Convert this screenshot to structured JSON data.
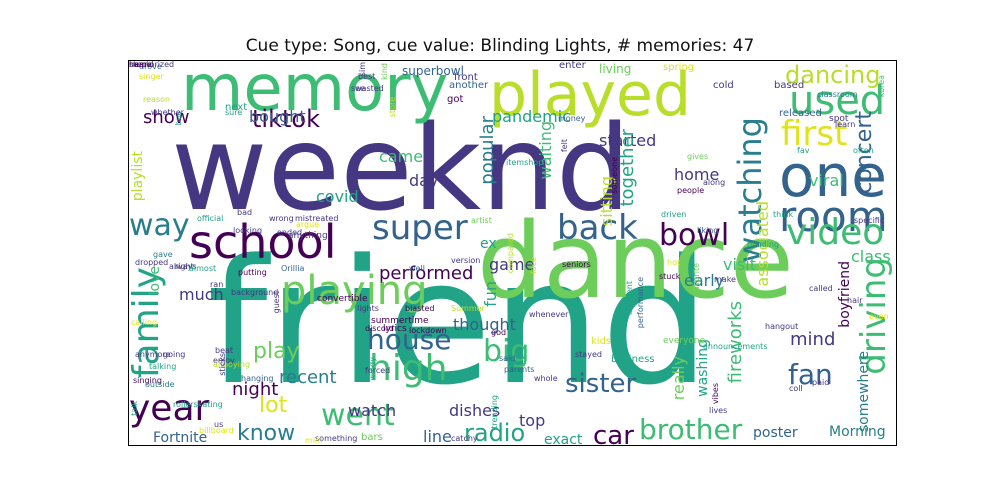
{
  "title": "Cue type: Song, cue value: Blinding Lights, # memories: 47",
  "palette": {
    "dark_purple": "#440154",
    "indigo": "#453781",
    "blue": "#33638d",
    "teal": "#287d8e",
    "green_teal": "#20a386",
    "green": "#3dbc74",
    "light_green": "#6ccd5a",
    "yellow_green": "#b8de29",
    "yellow": "#dfe318"
  },
  "words": [
    {
      "text": "weeknd",
      "color": "#453781"
    },
    {
      "text": "friend",
      "color": "#20a386"
    },
    {
      "text": "dance",
      "color": "#6ccd5a"
    },
    {
      "text": "memory",
      "color": "#3dbc74"
    },
    {
      "text": "played",
      "color": "#b8de29"
    },
    {
      "text": "school",
      "color": "#440154"
    },
    {
      "text": "one",
      "color": "#33638d"
    },
    {
      "text": "playing",
      "color": "#6ccd5a"
    },
    {
      "text": "watching",
      "color": "#287d8e"
    },
    {
      "text": "used",
      "color": "#3dbc74"
    },
    {
      "text": "room",
      "color": "#33638d"
    },
    {
      "text": "back",
      "color": "#33638d"
    },
    {
      "text": "first",
      "color": "#dfe318"
    },
    {
      "text": "way",
      "color": "#287d8e"
    },
    {
      "text": "super",
      "color": "#33638d"
    },
    {
      "text": "video",
      "color": "#3dbc74"
    },
    {
      "text": "bowl",
      "color": "#440154"
    },
    {
      "text": "family",
      "color": "#20a386"
    },
    {
      "text": "high",
      "color": "#3dbc74"
    },
    {
      "text": "house",
      "color": "#33638d"
    },
    {
      "text": "went",
      "color": "#3dbc74"
    },
    {
      "text": "driving",
      "color": "#3dbc74"
    },
    {
      "text": "year",
      "color": "#440154"
    },
    {
      "text": "brother",
      "color": "#3dbc74"
    },
    {
      "text": "tiktok",
      "color": "#440154"
    },
    {
      "text": "dancing",
      "color": "#b8de29"
    },
    {
      "text": "concert",
      "color": "#33638d"
    },
    {
      "text": "sister",
      "color": "#33638d"
    },
    {
      "text": "radio",
      "color": "#20a386"
    },
    {
      "text": "car",
      "color": "#440154"
    },
    {
      "text": "fan",
      "color": "#33638d"
    },
    {
      "text": "big",
      "color": "#3dbc74"
    },
    {
      "text": "lot",
      "color": "#dfe318"
    },
    {
      "text": "play",
      "color": "#6ccd5a"
    },
    {
      "text": "know",
      "color": "#287d8e"
    },
    {
      "text": "show",
      "color": "#440154"
    },
    {
      "text": "popular",
      "color": "#287d8e"
    },
    {
      "text": "pandemic",
      "color": "#20a386"
    },
    {
      "text": "performed",
      "color": "#440154"
    },
    {
      "text": "started",
      "color": "#453781"
    },
    {
      "text": "bought",
      "color": "#33638d"
    },
    {
      "text": "came",
      "color": "#3dbc74"
    },
    {
      "text": "home",
      "color": "#453781"
    },
    {
      "text": "viral",
      "color": "#3dbc74"
    },
    {
      "text": "mind",
      "color": "#453781"
    },
    {
      "text": "night",
      "color": "#440154"
    },
    {
      "text": "recent",
      "color": "#287d8e"
    },
    {
      "text": "much",
      "color": "#453781"
    },
    {
      "text": "together",
      "color": "#20a386"
    },
    {
      "text": "class",
      "color": "#3dbc74"
    },
    {
      "text": "early",
      "color": "#287d8e"
    },
    {
      "text": "visit",
      "color": "#3dbc74"
    },
    {
      "text": "fireworks",
      "color": "#3dbc74"
    },
    {
      "text": "associated",
      "color": "#b8de29"
    },
    {
      "text": "waiting",
      "color": "#3dbc74"
    },
    {
      "text": "sitting",
      "color": "#b8de29"
    },
    {
      "text": "fun",
      "color": "#20a386"
    },
    {
      "text": "thought",
      "color": "#33638d"
    },
    {
      "text": "game",
      "color": "#453781"
    },
    {
      "text": "covid",
      "color": "#20a386"
    },
    {
      "text": "day",
      "color": "#453781"
    },
    {
      "text": "watch",
      "color": "#453781"
    },
    {
      "text": "dishes",
      "color": "#453781"
    },
    {
      "text": "top",
      "color": "#453781"
    },
    {
      "text": "line",
      "color": "#33638d"
    },
    {
      "text": "exact",
      "color": "#20a386"
    },
    {
      "text": "Fortnite",
      "color": "#33638d"
    },
    {
      "text": "poster",
      "color": "#33638d"
    },
    {
      "text": "Morning",
      "color": "#287d8e"
    },
    {
      "text": "somewhere",
      "color": "#287d8e"
    },
    {
      "text": "boyfriend",
      "color": "#440154"
    },
    {
      "text": "really",
      "color": "#6ccd5a"
    },
    {
      "text": "washing",
      "color": "#20a386"
    },
    {
      "text": "love",
      "color": "#3dbc74"
    },
    {
      "text": "playlist",
      "color": "#b8de29"
    },
    {
      "text": "ex",
      "color": "#20a386"
    },
    {
      "text": "superbowl",
      "color": "#33638d"
    },
    {
      "text": "living",
      "color": "#6ccd5a"
    },
    {
      "text": "spring",
      "color": "#dfe318"
    },
    {
      "text": "enter",
      "color": "#453781"
    },
    {
      "text": "front",
      "color": "#453781"
    },
    {
      "text": "another",
      "color": "#33638d"
    },
    {
      "text": "got",
      "color": "#440154"
    },
    {
      "text": "money",
      "color": "#33638d"
    },
    {
      "text": "cold",
      "color": "#453781"
    },
    {
      "text": "based",
      "color": "#453781"
    },
    {
      "text": "classroom",
      "color": "#287d8e"
    },
    {
      "text": "korea",
      "color": "#3dbc74"
    },
    {
      "text": "released",
      "color": "#33638d"
    },
    {
      "text": "spot",
      "color": "#453781"
    },
    {
      "text": "learn",
      "color": "#453781"
    },
    {
      "text": "often",
      "color": "#20a386"
    },
    {
      "text": "fav",
      "color": "#20a386"
    },
    {
      "text": "gives",
      "color": "#6ccd5a"
    },
    {
      "text": "along",
      "color": "#453781"
    },
    {
      "text": "people",
      "color": "#440154"
    },
    {
      "text": "itemshop",
      "color": "#20a386"
    },
    {
      "text": "someone",
      "color": "#440154"
    },
    {
      "text": "felt",
      "color": "#453781"
    },
    {
      "text": "driven",
      "color": "#20a386"
    },
    {
      "text": "liking",
      "color": "#33638d"
    },
    {
      "text": "think",
      "color": "#20a386"
    },
    {
      "text": "specific",
      "color": "#453781"
    },
    {
      "text": "blinding",
      "color": "#20a386"
    },
    {
      "text": "artist",
      "color": "#6ccd5a"
    },
    {
      "text": "compared",
      "color": "#b8de29"
    },
    {
      "text": "face",
      "color": "#b8de29"
    },
    {
      "text": "seniors",
      "color": "#440154"
    },
    {
      "text": "different",
      "color": "#20a386"
    },
    {
      "text": "performance",
      "color": "#33638d"
    },
    {
      "text": "stuck",
      "color": "#440154"
    },
    {
      "text": "make",
      "color": "#453781"
    },
    {
      "text": "favorite",
      "color": "#6ccd5a"
    },
    {
      "text": "hot",
      "color": "#dfe318"
    },
    {
      "text": "hair",
      "color": "#453781"
    },
    {
      "text": "called",
      "color": "#453781"
    },
    {
      "text": "even",
      "color": "#dfe318"
    },
    {
      "text": "hangout",
      "color": "#453781"
    },
    {
      "text": "coll",
      "color": "#453781"
    },
    {
      "text": "paid",
      "color": "#453781"
    },
    {
      "text": "vibes",
      "color": "#440154"
    },
    {
      "text": "announcements",
      "color": "#20a386"
    },
    {
      "text": "everyone",
      "color": "#6ccd5a"
    },
    {
      "text": "kids",
      "color": "#dfe318"
    },
    {
      "text": "stayed",
      "color": "#453781"
    },
    {
      "text": "business",
      "color": "#20a386"
    },
    {
      "text": "lives",
      "color": "#453781"
    },
    {
      "text": "whole",
      "color": "#453781"
    },
    {
      "text": "parents",
      "color": "#33638d"
    },
    {
      "text": "trending",
      "color": "#20a386"
    },
    {
      "text": "said",
      "color": "#33638d"
    },
    {
      "text": "whenever",
      "color": "#453781"
    },
    {
      "text": "god",
      "color": "#440154"
    },
    {
      "text": "lyrics",
      "color": "#440154"
    },
    {
      "text": "lockdown",
      "color": "#440154"
    },
    {
      "text": "discord",
      "color": "#440154"
    },
    {
      "text": "Summer",
      "color": "#b8de29"
    },
    {
      "text": "blasted",
      "color": "#440154"
    },
    {
      "text": "lights",
      "color": "#453781"
    },
    {
      "text": "version",
      "color": "#453781"
    },
    {
      "text": "well",
      "color": "#33638d"
    },
    {
      "text": "anything",
      "color": "#453781"
    },
    {
      "text": "argue",
      "color": "#dfe318"
    },
    {
      "text": "mistreated",
      "color": "#453781"
    },
    {
      "text": "ended",
      "color": "#453781"
    },
    {
      "text": "wasted",
      "color": "#453781"
    },
    {
      "text": "see",
      "color": "#453781"
    },
    {
      "text": "best",
      "color": "#453781"
    },
    {
      "text": "sim",
      "color": "#453781"
    },
    {
      "text": "kind",
      "color": "#6ccd5a"
    },
    {
      "text": "store",
      "color": "#b8de29"
    },
    {
      "text": "bus",
      "color": "#20a386"
    },
    {
      "text": "reason",
      "color": "#b8de29"
    },
    {
      "text": "next",
      "color": "#20a386"
    },
    {
      "text": "sure",
      "color": "#20a386"
    },
    {
      "text": "whether",
      "color": "#453781"
    },
    {
      "text": "singer",
      "color": "#dfe318"
    },
    {
      "text": "drove",
      "color": "#287d8e"
    },
    {
      "text": "always",
      "color": "#453781"
    },
    {
      "text": "dropped",
      "color": "#453781"
    },
    {
      "text": "official",
      "color": "#20a386"
    },
    {
      "text": "looking",
      "color": "#453781"
    },
    {
      "text": "wrong",
      "color": "#453781"
    },
    {
      "text": "bad",
      "color": "#453781"
    },
    {
      "text": "guest",
      "color": "#453781"
    },
    {
      "text": "convertible",
      "color": "#440154"
    },
    {
      "text": "Orillia",
      "color": "#33638d"
    },
    {
      "text": "gave",
      "color": "#287d8e"
    },
    {
      "text": "right",
      "color": "#453781"
    },
    {
      "text": "almost",
      "color": "#20a386"
    },
    {
      "text": "calling",
      "color": "#dfe318"
    },
    {
      "text": "background",
      "color": "#453781"
    },
    {
      "text": "putting",
      "color": "#440154"
    },
    {
      "text": "ran",
      "color": "#453781"
    },
    {
      "text": "enjoy",
      "color": "#453781"
    },
    {
      "text": "beat",
      "color": "#453781"
    },
    {
      "text": "annoying",
      "color": "#b8de29"
    },
    {
      "text": "hanging",
      "color": "#33638d"
    },
    {
      "text": "anymore",
      "color": "#453781"
    },
    {
      "text": "going",
      "color": "#453781"
    },
    {
      "text": "singing",
      "color": "#440154"
    },
    {
      "text": "talking",
      "color": "#20a386"
    },
    {
      "text": "talk",
      "color": "#20a386"
    },
    {
      "text": "outside",
      "color": "#287d8e"
    },
    {
      "text": "sticks",
      "color": "#453781"
    },
    {
      "text": "rollerskating",
      "color": "#20a386"
    },
    {
      "text": "forced",
      "color": "#453781"
    },
    {
      "text": "windy",
      "color": "#20a386"
    },
    {
      "text": "something",
      "color": "#453781"
    },
    {
      "text": "catchy",
      "color": "#453781"
    },
    {
      "text": "bars",
      "color": "#6ccd5a"
    },
    {
      "text": "mini",
      "color": "#dfe318"
    },
    {
      "text": "billboard",
      "color": "#dfe318"
    },
    {
      "text": "us",
      "color": "#453781"
    },
    {
      "text": "summertime",
      "color": "#440154"
    },
    {
      "text": "stupid",
      "color": "#453781"
    },
    {
      "text": "hear",
      "color": "#440154"
    },
    {
      "text": "memorized",
      "color": "#453781"
    },
    {
      "text": "name",
      "color": "#440154"
    }
  ]
}
